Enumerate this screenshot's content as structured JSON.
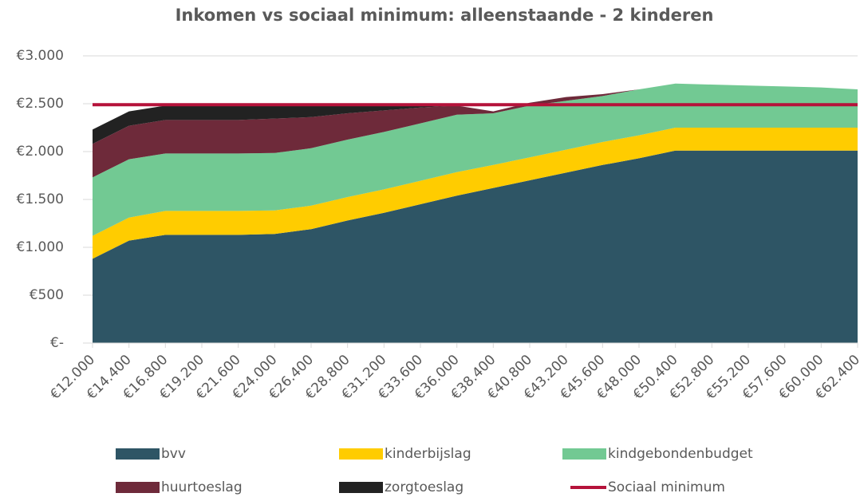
{
  "chart_data": {
    "type": "area",
    "stacked": true,
    "title": "Inkomen vs sociaal minimum: alleenstaande - 2 kinderen",
    "categories": [
      "€12.000",
      "€14.400",
      "€16.800",
      "€19.200",
      "€21.600",
      "€24.000",
      "€26.400",
      "€28.800",
      "€31.200",
      "€33.600",
      "€36.000",
      "€38.400",
      "€40.800",
      "€43.200",
      "€45.600",
      "€48.000",
      "€50.400",
      "€52.800",
      "€55.200",
      "€57.600",
      "€60.000",
      "€62.400"
    ],
    "series": [
      {
        "name": "bvv",
        "color": "#2e5565",
        "values": [
          880,
          1070,
          1130,
          1130,
          1130,
          1140,
          1190,
          1280,
          1360,
          1450,
          1540,
          1620,
          1700,
          1780,
          1860,
          1930,
          2010,
          2010,
          2010,
          2010,
          2010,
          2010
        ]
      },
      {
        "name": "kinderbijslag",
        "color": "#ffcc00",
        "values": [
          240,
          240,
          250,
          250,
          250,
          245,
          245,
          245,
          245,
          245,
          245,
          240,
          240,
          240,
          240,
          240,
          240,
          240,
          240,
          240,
          240,
          240
        ]
      },
      {
        "name": "kindgebondenbudget",
        "color": "#72c993",
        "values": [
          610,
          610,
          600,
          600,
          600,
          600,
          600,
          600,
          600,
          600,
          600,
          540,
          540,
          510,
          480,
          480,
          460,
          450,
          440,
          430,
          420,
          400
        ]
      },
      {
        "name": "huurtoeslag",
        "color": "#6e2a3a",
        "values": [
          350,
          350,
          350,
          350,
          350,
          360,
          325,
          275,
          225,
          165,
          95,
          20,
          30,
          40,
          20,
          0,
          0,
          0,
          0,
          0,
          0,
          0
        ]
      },
      {
        "name": "zorgtoeslag",
        "color": "#222222",
        "values": [
          150,
          150,
          150,
          150,
          150,
          150,
          120,
          90,
          55,
          25,
          0,
          0,
          0,
          0,
          0,
          0,
          0,
          0,
          0,
          0,
          0,
          0
        ]
      },
      {
        "name": "Sociaal minimum",
        "color": "#b5123a",
        "type": "line",
        "values": [
          2490,
          2490,
          2490,
          2490,
          2490,
          2490,
          2490,
          2490,
          2490,
          2490,
          2490,
          2490,
          2490,
          2490,
          2490,
          2490,
          2490,
          2490,
          2490,
          2490,
          2490,
          2490
        ]
      }
    ],
    "ylim": [
      0,
      3000
    ],
    "yticks": [
      {
        "value": 0,
        "label": "€-"
      },
      {
        "value": 500,
        "label": "€500"
      },
      {
        "value": 1000,
        "label": "€1.000"
      },
      {
        "value": 1500,
        "label": "€1.500"
      },
      {
        "value": 2000,
        "label": "€2.000"
      },
      {
        "value": 2500,
        "label": "€2.500"
      },
      {
        "value": 3000,
        "label": "€3.000"
      }
    ],
    "grid": true,
    "legend": "bottom"
  }
}
